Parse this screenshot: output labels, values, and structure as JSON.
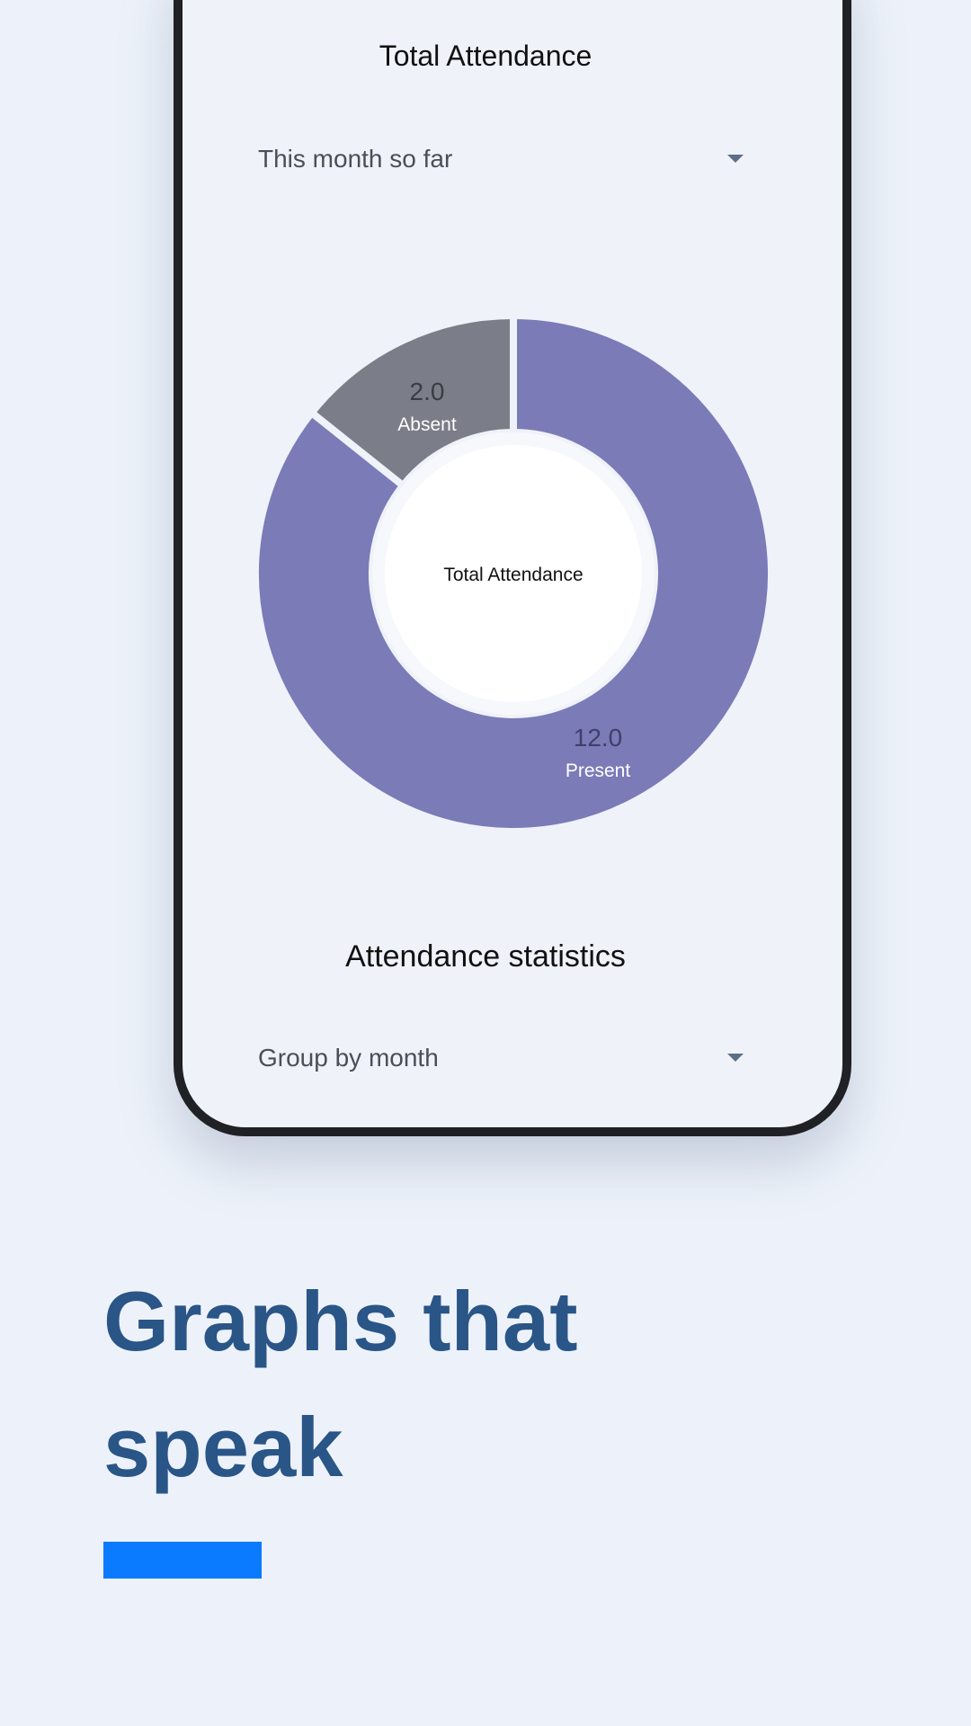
{
  "screen": {
    "title": "Total Attendance",
    "period_dropdown": "This month so far",
    "stats_title": "Attendance statistics",
    "group_dropdown": "Group by month"
  },
  "chart_data": {
    "type": "pie",
    "variant": "donut",
    "center_label": "Total Attendance",
    "categories": [
      "Present",
      "Absent"
    ],
    "values": [
      12.0,
      2.0
    ],
    "value_labels": [
      "12.0",
      "2.0"
    ],
    "colors": [
      "#7b7bb8",
      "#7b7d88"
    ]
  },
  "headline": {
    "line1": "Graphs that",
    "line2": "speak"
  },
  "colors": {
    "background": "#edf2fa",
    "headline": "#2a5587",
    "accent_bar": "#0a7aff"
  }
}
